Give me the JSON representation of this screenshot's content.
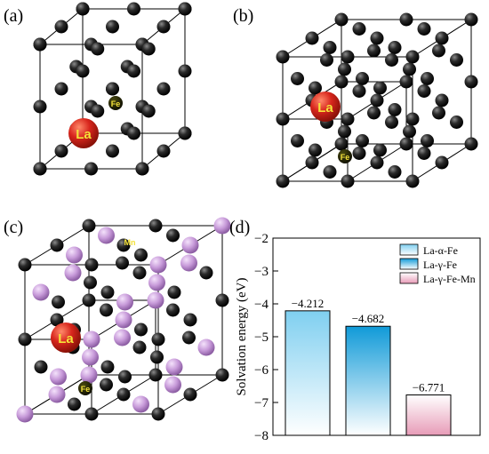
{
  "panels": {
    "a": {
      "label": "(a)",
      "host": "La",
      "dopant": "Fe"
    },
    "b": {
      "label": "(b)",
      "host": "La",
      "dopant": "Fe"
    },
    "c": {
      "label": "(c)",
      "host": "La",
      "dopant": "Fe",
      "alloy": "Mn"
    },
    "d": {
      "label": "(d)"
    }
  },
  "colors": {
    "fe_atom": "#1a1a1a",
    "la_atom": "#d8261d",
    "mn_atom": "#c79ad9",
    "label_yellow": "#f4e23a"
  },
  "chart_data": {
    "type": "bar",
    "categories": [
      "La-α-Fe",
      "La-γ-Fe",
      "La-γ-Fe-Mn"
    ],
    "values": [
      -4.212,
      -4.682,
      -6.771
    ],
    "data_labels": [
      "−4.212",
      "−4.682",
      "−6.771"
    ],
    "title": "",
    "xlabel": "",
    "ylabel": "Solvation energy (eV)",
    "ylim": [
      -8,
      -2
    ],
    "yticks": [
      "−2",
      "−3",
      "−4",
      "−5",
      "−6",
      "−7",
      "−8"
    ],
    "ytick_values": [
      -2,
      -3,
      -4,
      -5,
      -6,
      -7,
      -8
    ],
    "legend": {
      "placement": "top-right",
      "entries": [
        "La-α-Fe",
        "La-γ-Fe",
        "La-γ-Fe-Mn"
      ]
    },
    "series_colors": [
      "#7fcff0",
      "#109ad8",
      "#e79bb7"
    ],
    "grid": false
  }
}
